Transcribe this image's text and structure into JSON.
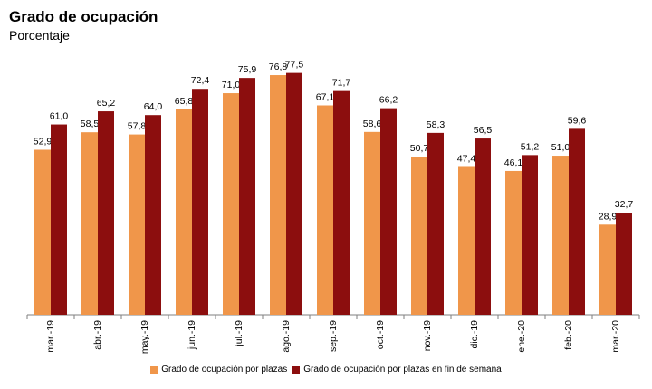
{
  "header": {
    "title": "Grado de ocupación",
    "subtitle": "Porcentaje"
  },
  "colors": {
    "series1": "#F0964A",
    "series2": "#8C0E0E",
    "axis": "#7F7F7F"
  },
  "chart_data": {
    "type": "bar",
    "title": "Grado de ocupación",
    "subtitle": "Porcentaje",
    "xlabel": "",
    "ylabel": "",
    "ylim": [
      0,
      100
    ],
    "grid": false,
    "legend_position": "bottom",
    "categories": [
      "mar.-19",
      "abr.-19",
      "may.-19",
      "jun.-19",
      "jul.-19",
      "ago.-19",
      "sep.-19",
      "oct.-19",
      "nov.-19",
      "dic.-19",
      "ene.-20",
      "feb.-20",
      "mar.-20"
    ],
    "series": [
      {
        "name": "Grado de ocupación por plazas",
        "values": [
          52.9,
          58.5,
          57.8,
          65.8,
          71.0,
          76.8,
          67.1,
          58.6,
          50.7,
          47.4,
          46.1,
          51.0,
          28.9
        ],
        "labels": [
          "52,9",
          "58,5",
          "57,8",
          "65,8",
          "71,0",
          "76,8",
          "67,1",
          "58,6",
          "50,7",
          "47,4",
          "46,1",
          "51,0",
          "28,9"
        ]
      },
      {
        "name": "Grado de ocupación por plazas en fin de semana",
        "values": [
          61.0,
          65.2,
          64.0,
          72.4,
          75.9,
          77.5,
          71.7,
          66.2,
          58.3,
          56.5,
          51.2,
          59.6,
          32.7
        ],
        "labels": [
          "61,0",
          "65,2",
          "64,0",
          "72,4",
          "75,9",
          "77,5",
          "71,7",
          "66,2",
          "58,3",
          "56,5",
          "51,2",
          "59,6",
          "32,7"
        ]
      }
    ]
  }
}
